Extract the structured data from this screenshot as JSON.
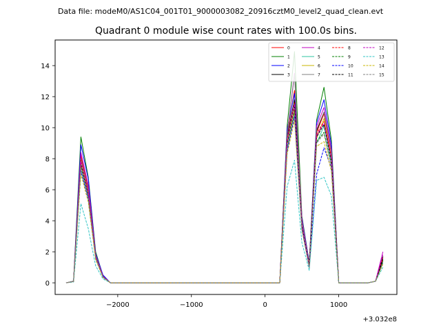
{
  "chart_data": {
    "type": "line",
    "suptitle": "Data file: modeM0/AS1C04_001T01_9000003082_20916cztM0_level2_quad_clean.evt",
    "title": "Quadrant 0 module wise count rates with 100.0s bins.",
    "xlabel": "",
    "ylabel": "",
    "x_offset_label": "+3.032e8",
    "xlim": [
      -2850,
      1790
    ],
    "ylim": [
      -0.75,
      15.65
    ],
    "xticks": [
      -2000,
      -1000,
      0,
      1000
    ],
    "xtick_labels": [
      "−2000",
      "−1000",
      "0",
      "1000"
    ],
    "yticks": [
      0,
      2,
      4,
      6,
      8,
      10,
      12,
      14
    ],
    "ytick_labels": [
      "0",
      "2",
      "4",
      "6",
      "8",
      "10",
      "12",
      "14"
    ],
    "legend_position": "top-right",
    "x": [
      -2700,
      -2600,
      -2500,
      -2400,
      -2300,
      -2200,
      -2100,
      -2000,
      -1900,
      -1800,
      -1700,
      -1600,
      -1500,
      -1400,
      -1300,
      -1200,
      -1100,
      -1000,
      -900,
      -800,
      -700,
      -600,
      -500,
      -400,
      -300,
      -200,
      -100,
      0,
      100,
      200,
      300,
      400,
      500,
      600,
      700,
      800,
      900,
      1000,
      1100,
      1200,
      1300,
      1400,
      1500,
      1600
    ],
    "series": [
      {
        "name": "0",
        "color": "#ff0000",
        "dash": "solid",
        "values": [
          0.0,
          0.08,
          8.2,
          6.1,
          1.8,
          0.4,
          0.0,
          0.0,
          0.0,
          0.0,
          0.0,
          0.0,
          0.0,
          0.0,
          0.0,
          0.0,
          0.0,
          0.0,
          0.0,
          0.0,
          0.0,
          0.0,
          0.0,
          0.0,
          0.0,
          0.0,
          0.0,
          0.0,
          0.0,
          0.0,
          9.6,
          12.4,
          3.9,
          1.2,
          9.7,
          10.9,
          8.3,
          0.0,
          0.0,
          0.0,
          0.0,
          0.0,
          0.1,
          1.7
        ]
      },
      {
        "name": "1",
        "color": "#008000",
        "dash": "solid",
        "values": [
          0.0,
          0.1,
          9.4,
          6.8,
          2.0,
          0.45,
          0.0,
          0.0,
          0.0,
          0.0,
          0.0,
          0.0,
          0.0,
          0.0,
          0.0,
          0.0,
          0.0,
          0.0,
          0.0,
          0.0,
          0.0,
          0.0,
          0.0,
          0.0,
          0.0,
          0.0,
          0.0,
          0.0,
          0.0,
          0.0,
          10.1,
          14.9,
          4.3,
          1.3,
          10.5,
          12.6,
          9.2,
          0.0,
          0.0,
          0.0,
          0.0,
          0.0,
          0.1,
          1.6
        ]
      },
      {
        "name": "2",
        "color": "#0000ff",
        "dash": "solid",
        "values": [
          0.0,
          0.1,
          8.9,
          6.7,
          1.9,
          0.5,
          0.0,
          0.0,
          0.0,
          0.0,
          0.0,
          0.0,
          0.0,
          0.0,
          0.0,
          0.0,
          0.0,
          0.0,
          0.0,
          0.0,
          0.0,
          0.0,
          0.0,
          0.0,
          0.0,
          0.0,
          0.0,
          0.0,
          0.0,
          0.0,
          9.9,
          12.2,
          4.2,
          1.3,
          10.3,
          11.8,
          8.9,
          0.0,
          0.0,
          0.0,
          0.0,
          0.0,
          0.1,
          1.5
        ]
      },
      {
        "name": "3",
        "color": "#000000",
        "dash": "solid",
        "values": [
          0.0,
          0.1,
          8.0,
          6.0,
          1.8,
          0.4,
          0.0,
          0.0,
          0.0,
          0.0,
          0.0,
          0.0,
          0.0,
          0.0,
          0.0,
          0.0,
          0.0,
          0.0,
          0.0,
          0.0,
          0.0,
          0.0,
          0.0,
          0.0,
          0.0,
          0.0,
          0.0,
          0.0,
          0.0,
          0.0,
          9.4,
          11.8,
          4.0,
          1.2,
          9.8,
          11.0,
          8.5,
          0.0,
          0.0,
          0.0,
          0.0,
          0.0,
          0.1,
          1.7
        ]
      },
      {
        "name": "4",
        "color": "#c000c0",
        "dash": "solid",
        "values": [
          0.0,
          0.08,
          8.4,
          6.3,
          1.8,
          0.42,
          0.0,
          0.0,
          0.0,
          0.0,
          0.0,
          0.0,
          0.0,
          0.0,
          0.0,
          0.0,
          0.0,
          0.0,
          0.0,
          0.0,
          0.0,
          0.0,
          0.0,
          0.0,
          0.0,
          0.0,
          0.0,
          0.0,
          0.0,
          0.0,
          9.6,
          13.5,
          4.1,
          1.2,
          10.1,
          11.3,
          8.6,
          0.0,
          0.0,
          0.0,
          0.0,
          0.0,
          0.1,
          2.0
        ]
      },
      {
        "name": "5",
        "color": "#2ec4a0",
        "dash": "solid",
        "values": [
          0.0,
          0.08,
          7.3,
          5.4,
          1.6,
          0.35,
          0.0,
          0.0,
          0.0,
          0.0,
          0.0,
          0.0,
          0.0,
          0.0,
          0.0,
          0.0,
          0.0,
          0.0,
          0.0,
          0.0,
          0.0,
          0.0,
          0.0,
          0.0,
          0.0,
          0.0,
          0.0,
          0.0,
          0.0,
          0.0,
          8.6,
          10.9,
          3.6,
          1.1,
          9.0,
          10.1,
          7.8,
          0.0,
          0.0,
          0.0,
          0.0,
          0.0,
          0.1,
          1.3
        ]
      },
      {
        "name": "6",
        "color": "#c8b400",
        "dash": "solid",
        "values": [
          0.0,
          0.08,
          7.6,
          5.8,
          1.7,
          0.38,
          0.0,
          0.0,
          0.0,
          0.0,
          0.0,
          0.0,
          0.0,
          0.0,
          0.0,
          0.0,
          0.0,
          0.0,
          0.0,
          0.0,
          0.0,
          0.0,
          0.0,
          0.0,
          0.0,
          0.0,
          0.0,
          0.0,
          0.0,
          0.0,
          9.0,
          11.2,
          3.7,
          1.1,
          9.3,
          10.6,
          8.0,
          0.0,
          0.0,
          0.0,
          0.0,
          0.0,
          0.1,
          1.4
        ]
      },
      {
        "name": "7",
        "color": "#808080",
        "dash": "solid",
        "values": [
          0.0,
          0.08,
          8.0,
          6.0,
          1.8,
          0.4,
          0.0,
          0.0,
          0.0,
          0.0,
          0.0,
          0.0,
          0.0,
          0.0,
          0.0,
          0.0,
          0.0,
          0.0,
          0.0,
          0.0,
          0.0,
          0.0,
          0.0,
          0.0,
          0.0,
          0.0,
          0.0,
          0.0,
          0.0,
          0.0,
          9.5,
          13.4,
          4.0,
          1.2,
          9.9,
          11.0,
          8.4,
          0.0,
          0.0,
          0.0,
          0.0,
          0.0,
          0.1,
          1.5
        ]
      },
      {
        "name": "8",
        "color": "#ff0000",
        "dash": "dashed",
        "values": [
          0.0,
          0.08,
          7.9,
          5.9,
          1.7,
          0.4,
          0.0,
          0.0,
          0.0,
          0.0,
          0.0,
          0.0,
          0.0,
          0.0,
          0.0,
          0.0,
          0.0,
          0.0,
          0.0,
          0.0,
          0.0,
          0.0,
          0.0,
          0.0,
          0.0,
          0.0,
          0.0,
          0.0,
          0.0,
          0.0,
          9.2,
          11.6,
          3.8,
          1.1,
          9.6,
          10.4,
          8.1,
          0.0,
          0.0,
          0.0,
          0.0,
          0.0,
          0.1,
          1.6
        ]
      },
      {
        "name": "9",
        "color": "#008000",
        "dash": "dashed",
        "values": [
          0.0,
          0.08,
          7.5,
          5.6,
          1.6,
          0.38,
          0.0,
          0.0,
          0.0,
          0.0,
          0.0,
          0.0,
          0.0,
          0.0,
          0.0,
          0.0,
          0.0,
          0.0,
          0.0,
          0.0,
          0.0,
          0.0,
          0.0,
          0.0,
          0.0,
          0.0,
          0.0,
          0.0,
          0.0,
          0.0,
          8.8,
          11.0,
          3.6,
          1.0,
          9.1,
          9.7,
          7.6,
          0.0,
          0.0,
          0.0,
          0.0,
          0.0,
          0.1,
          1.4
        ]
      },
      {
        "name": "10",
        "color": "#0000ff",
        "dash": "dashed",
        "values": [
          0.0,
          0.08,
          7.2,
          5.4,
          1.6,
          0.35,
          0.0,
          0.0,
          0.0,
          0.0,
          0.0,
          0.0,
          0.0,
          0.0,
          0.0,
          0.0,
          0.0,
          0.0,
          0.0,
          0.0,
          0.0,
          0.0,
          0.0,
          0.0,
          0.0,
          0.0,
          0.0,
          0.0,
          0.0,
          0.0,
          8.5,
          10.7,
          3.5,
          1.0,
          7.0,
          8.7,
          7.4,
          0.0,
          0.0,
          0.0,
          0.0,
          0.0,
          0.1,
          1.3
        ]
      },
      {
        "name": "11",
        "color": "#000000",
        "dash": "dashed",
        "values": [
          0.0,
          0.08,
          7.7,
          5.7,
          1.7,
          0.38,
          0.0,
          0.0,
          0.0,
          0.0,
          0.0,
          0.0,
          0.0,
          0.0,
          0.0,
          0.0,
          0.0,
          0.0,
          0.0,
          0.0,
          0.0,
          0.0,
          0.0,
          0.0,
          0.0,
          0.0,
          0.0,
          0.0,
          0.0,
          0.0,
          9.0,
          11.4,
          3.7,
          1.1,
          9.4,
          10.2,
          7.9,
          0.0,
          0.0,
          0.0,
          0.0,
          0.0,
          0.1,
          1.5
        ]
      },
      {
        "name": "12",
        "color": "#c000c0",
        "dash": "dashed",
        "values": [
          0.0,
          0.08,
          7.8,
          5.8,
          1.7,
          0.4,
          0.0,
          0.0,
          0.0,
          0.0,
          0.0,
          0.0,
          0.0,
          0.0,
          0.0,
          0.0,
          0.0,
          0.0,
          0.0,
          0.0,
          0.0,
          0.0,
          0.0,
          0.0,
          0.0,
          0.0,
          0.0,
          0.0,
          0.0,
          0.0,
          9.1,
          11.5,
          3.8,
          1.1,
          9.5,
          10.3,
          8.0,
          0.0,
          0.0,
          0.0,
          0.0,
          0.0,
          0.1,
          1.8
        ]
      },
      {
        "name": "13",
        "color": "#2ec4c4",
        "dash": "dashed",
        "values": [
          0.0,
          0.05,
          5.1,
          3.5,
          1.1,
          0.25,
          0.0,
          0.0,
          0.0,
          0.0,
          0.0,
          0.0,
          0.0,
          0.0,
          0.0,
          0.0,
          0.0,
          0.0,
          0.0,
          0.0,
          0.0,
          0.0,
          0.0,
          0.0,
          0.0,
          0.0,
          0.0,
          0.0,
          0.0,
          0.0,
          6.2,
          7.9,
          2.6,
          0.8,
          6.6,
          6.8,
          5.6,
          0.0,
          0.0,
          0.0,
          0.0,
          0.0,
          0.1,
          1.0
        ]
      },
      {
        "name": "14",
        "color": "#c8b400",
        "dash": "dashed",
        "values": [
          0.0,
          0.08,
          7.0,
          5.2,
          1.5,
          0.35,
          0.0,
          0.0,
          0.0,
          0.0,
          0.0,
          0.0,
          0.0,
          0.0,
          0.0,
          0.0,
          0.0,
          0.0,
          0.0,
          0.0,
          0.0,
          0.0,
          0.0,
          0.0,
          0.0,
          0.0,
          0.0,
          0.0,
          0.0,
          0.0,
          8.3,
          10.5,
          3.4,
          1.0,
          8.8,
          9.1,
          7.2,
          0.0,
          0.0,
          0.0,
          0.0,
          0.0,
          0.1,
          1.2
        ]
      },
      {
        "name": "15",
        "color": "#808080",
        "dash": "dashed",
        "values": [
          0.0,
          0.08,
          7.4,
          5.5,
          1.6,
          0.36,
          0.0,
          0.0,
          0.0,
          0.0,
          0.0,
          0.0,
          0.0,
          0.0,
          0.0,
          0.0,
          0.0,
          0.0,
          0.0,
          0.0,
          0.0,
          0.0,
          0.0,
          0.0,
          0.0,
          0.0,
          0.0,
          0.0,
          0.0,
          0.0,
          8.7,
          10.9,
          3.5,
          1.0,
          9.0,
          9.6,
          7.5,
          0.0,
          0.0,
          0.0,
          0.0,
          0.0,
          0.1,
          1.3
        ]
      }
    ]
  }
}
